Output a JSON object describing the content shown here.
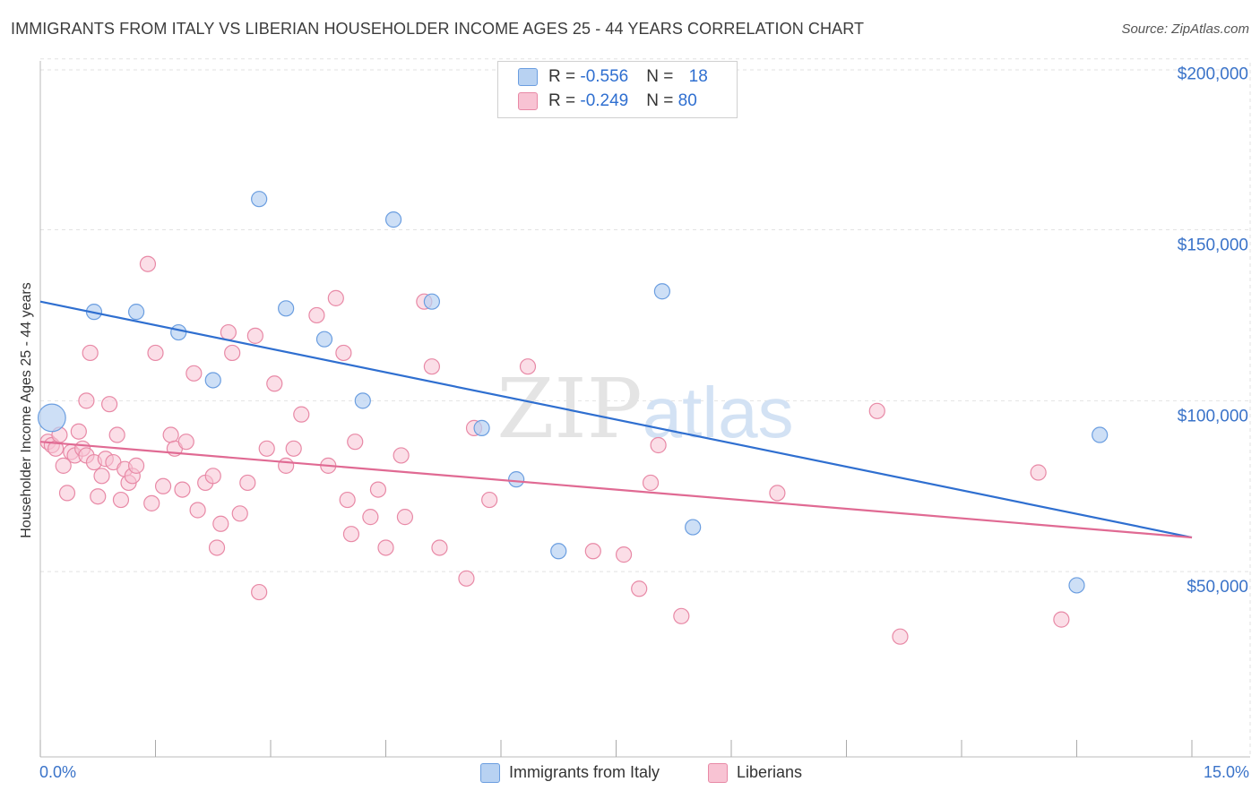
{
  "header": {
    "title": "IMMIGRANTS FROM ITALY VS LIBERIAN HOUSEHOLDER INCOME AGES 25 - 44 YEARS CORRELATION CHART",
    "source": "Source: ZipAtlas.com"
  },
  "watermark": "ZIPatlas",
  "colors": {
    "blue_fill": "#b8d2f2",
    "blue_stroke": "#6b9ee0",
    "blue_line": "#2f6fd0",
    "pink_fill": "#f8c3d3",
    "pink_stroke": "#e889a6",
    "pink_line": "#e06a93",
    "axis_text": "#3a73c9"
  },
  "legend": {
    "rows": [
      {
        "r_label": "R = ",
        "r_value": "-0.556",
        "n_label": "N = ",
        "n_value": "18"
      },
      {
        "r_label": "R = ",
        "r_value": "-0.249",
        "n_label": "N = ",
        "n_value": "80"
      }
    ],
    "bottom": [
      "Immigrants from Italy",
      "Liberians"
    ]
  },
  "chart_data": {
    "type": "scatter",
    "title": "IMMIGRANTS FROM ITALY VS LIBERIAN HOUSEHOLDER INCOME AGES 25 - 44 YEARS CORRELATION CHART",
    "xlabel": "",
    "ylabel": "Householder Income Ages 25 - 44 years",
    "xlim": [
      0,
      15
    ],
    "ylim": [
      0,
      210000
    ],
    "x_tick_labels": [
      "0.0%",
      "15.0%"
    ],
    "y_ticks": [
      50000,
      100000,
      150000,
      200000
    ],
    "y_tick_labels": [
      "$50,000",
      "$100,000",
      "$150,000",
      "$200,000"
    ],
    "grid": true,
    "legend_position": "top-center",
    "series": [
      {
        "name": "Immigrants from Italy",
        "trend": [
          [
            0,
            129000
          ],
          [
            15,
            60000
          ]
        ],
        "points": [
          [
            0.15,
            95000,
            1.8
          ],
          [
            0.7,
            126000,
            1
          ],
          [
            1.25,
            126000,
            1
          ],
          [
            1.8,
            120000,
            1
          ],
          [
            2.25,
            106000,
            1
          ],
          [
            2.85,
            159000,
            1
          ],
          [
            3.2,
            127000,
            1
          ],
          [
            3.7,
            118000,
            1
          ],
          [
            4.2,
            100000,
            1
          ],
          [
            4.6,
            153000,
            1
          ],
          [
            5.1,
            129000,
            1
          ],
          [
            5.75,
            92000,
            1
          ],
          [
            6.2,
            77000,
            1
          ],
          [
            6.75,
            56000,
            1
          ],
          [
            8.1,
            132000,
            1
          ],
          [
            8.5,
            63000,
            1
          ],
          [
            13.5,
            46000,
            1
          ],
          [
            13.8,
            90000,
            1
          ]
        ]
      },
      {
        "name": "Liberians",
        "trend": [
          [
            0,
            88000
          ],
          [
            15,
            60000
          ]
        ],
        "points": [
          [
            0.1,
            88000
          ],
          [
            0.15,
            87000
          ],
          [
            0.2,
            86000
          ],
          [
            0.25,
            90000
          ],
          [
            0.3,
            81000
          ],
          [
            0.35,
            73000
          ],
          [
            0.4,
            85000
          ],
          [
            0.45,
            84000
          ],
          [
            0.5,
            91000
          ],
          [
            0.55,
            86000
          ],
          [
            0.6,
            84000
          ],
          [
            0.65,
            114000
          ],
          [
            0.7,
            82000
          ],
          [
            0.75,
            72000
          ],
          [
            0.8,
            78000
          ],
          [
            0.85,
            83000
          ],
          [
            0.9,
            99000
          ],
          [
            0.95,
            82000
          ],
          [
            1.0,
            90000
          ],
          [
            1.05,
            71000
          ],
          [
            1.1,
            80000
          ],
          [
            1.15,
            76000
          ],
          [
            1.2,
            78000
          ],
          [
            1.25,
            81000
          ],
          [
            1.4,
            140000
          ],
          [
            1.45,
            70000
          ],
          [
            1.5,
            114000
          ],
          [
            1.6,
            75000
          ],
          [
            1.7,
            90000
          ],
          [
            1.75,
            86000
          ],
          [
            1.85,
            74000
          ],
          [
            2.0,
            108000
          ],
          [
            2.05,
            68000
          ],
          [
            2.15,
            76000
          ],
          [
            2.25,
            78000
          ],
          [
            2.3,
            57000
          ],
          [
            2.35,
            64000
          ],
          [
            2.45,
            120000
          ],
          [
            2.5,
            114000
          ],
          [
            2.6,
            67000
          ],
          [
            2.7,
            76000
          ],
          [
            2.8,
            119000
          ],
          [
            2.85,
            44000
          ],
          [
            2.95,
            86000
          ],
          [
            3.05,
            105000
          ],
          [
            3.2,
            81000
          ],
          [
            3.3,
            86000
          ],
          [
            3.6,
            125000
          ],
          [
            3.75,
            81000
          ],
          [
            3.85,
            130000
          ],
          [
            3.95,
            114000
          ],
          [
            4.0,
            71000
          ],
          [
            4.05,
            61000
          ],
          [
            4.1,
            88000
          ],
          [
            4.3,
            66000
          ],
          [
            4.4,
            74000
          ],
          [
            4.5,
            57000
          ],
          [
            4.7,
            84000
          ],
          [
            4.75,
            66000
          ],
          [
            5.0,
            129000
          ],
          [
            5.1,
            110000
          ],
          [
            5.2,
            57000
          ],
          [
            5.55,
            48000
          ],
          [
            5.65,
            92000
          ],
          [
            5.85,
            71000
          ],
          [
            6.35,
            110000
          ],
          [
            7.2,
            56000
          ],
          [
            7.6,
            55000
          ],
          [
            7.8,
            45000
          ],
          [
            7.95,
            76000
          ],
          [
            8.05,
            87000
          ],
          [
            8.35,
            37000
          ],
          [
            9.6,
            73000
          ],
          [
            10.9,
            97000
          ],
          [
            11.2,
            31000
          ],
          [
            13.0,
            79000
          ],
          [
            13.3,
            36000
          ],
          [
            0.6,
            100000
          ],
          [
            1.9,
            88000
          ],
          [
            3.4,
            96000
          ]
        ]
      }
    ]
  }
}
